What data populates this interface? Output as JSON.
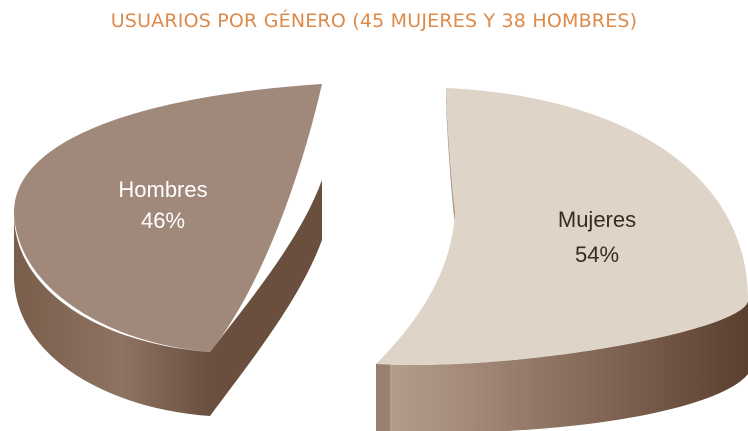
{
  "chart_data": {
    "type": "pie",
    "style": "3d-exploded",
    "title": "USUARIOS POR GÉNERO (45 MUJERES Y 38 HOMBRES)",
    "slices": [
      {
        "label": "Hombres",
        "percent_label": "46%",
        "value": 46,
        "color": "#a0887a"
      },
      {
        "label": "Mujeres",
        "percent_label": "54%",
        "value": 54,
        "color": "#ded4c8"
      }
    ],
    "colors": {
      "title": "#dd8a4a",
      "side_dark": "#5f4535",
      "side_light": "#a88f80"
    }
  }
}
